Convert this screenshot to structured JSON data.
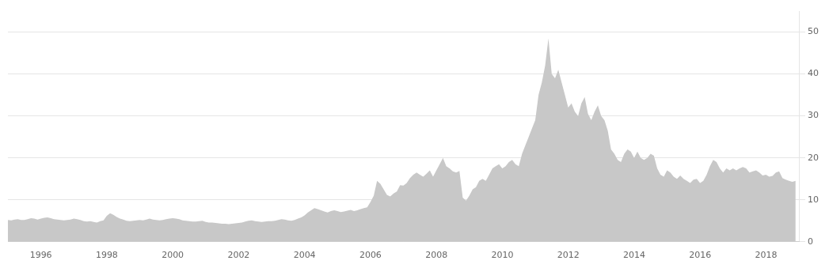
{
  "chart_data": {
    "type": "area",
    "x": [
      1995.0,
      1995.1,
      1995.2,
      1995.3,
      1995.4,
      1995.5,
      1995.6,
      1995.7,
      1995.8,
      1995.9,
      1996.0,
      1996.1,
      1996.2,
      1996.3,
      1996.4,
      1996.5,
      1996.6,
      1996.7,
      1996.8,
      1996.9,
      1997.0,
      1997.1,
      1997.2,
      1997.3,
      1997.4,
      1997.5,
      1997.6,
      1997.7,
      1997.8,
      1997.9,
      1998.0,
      1998.1,
      1998.2,
      1998.3,
      1998.4,
      1998.5,
      1998.6,
      1998.7,
      1998.8,
      1998.9,
      1999.0,
      1999.1,
      1999.2,
      1999.3,
      1999.4,
      1999.5,
      1999.6,
      1999.7,
      1999.8,
      1999.9,
      2000.0,
      2000.1,
      2000.2,
      2000.3,
      2000.4,
      2000.5,
      2000.6,
      2000.7,
      2000.8,
      2000.9,
      2001.0,
      2001.1,
      2001.2,
      2001.3,
      2001.4,
      2001.5,
      2001.6,
      2001.7,
      2001.8,
      2001.9,
      2002.0,
      2002.1,
      2002.2,
      2002.3,
      2002.4,
      2002.5,
      2002.6,
      2002.7,
      2002.8,
      2002.9,
      2003.0,
      2003.1,
      2003.2,
      2003.3,
      2003.4,
      2003.5,
      2003.6,
      2003.7,
      2003.8,
      2003.9,
      2004.0,
      2004.1,
      2004.2,
      2004.3,
      2004.4,
      2004.5,
      2004.6,
      2004.7,
      2004.8,
      2004.9,
      2005.0,
      2005.1,
      2005.2,
      2005.3,
      2005.4,
      2005.5,
      2005.6,
      2005.7,
      2005.8,
      2005.9,
      2006.0,
      2006.1,
      2006.2,
      2006.3,
      2006.4,
      2006.5,
      2006.6,
      2006.7,
      2006.8,
      2006.9,
      2007.0,
      2007.1,
      2007.2,
      2007.3,
      2007.4,
      2007.5,
      2007.6,
      2007.7,
      2007.8,
      2007.9,
      2008.0,
      2008.1,
      2008.2,
      2008.3,
      2008.4,
      2008.5,
      2008.6,
      2008.7,
      2008.8,
      2008.9,
      2009.0,
      2009.1,
      2009.2,
      2009.3,
      2009.4,
      2009.5,
      2009.6,
      2009.7,
      2009.8,
      2009.9,
      2010.0,
      2010.1,
      2010.2,
      2010.3,
      2010.4,
      2010.5,
      2010.6,
      2010.7,
      2010.8,
      2010.9,
      2011.0,
      2011.1,
      2011.2,
      2011.3,
      2011.4,
      2011.5,
      2011.6,
      2011.7,
      2011.8,
      2011.9,
      2012.0,
      2012.1,
      2012.2,
      2012.3,
      2012.4,
      2012.5,
      2012.6,
      2012.7,
      2012.8,
      2012.9,
      2013.0,
      2013.1,
      2013.2,
      2013.3,
      2013.4,
      2013.5,
      2013.6,
      2013.7,
      2013.8,
      2013.9,
      2014.0,
      2014.1,
      2014.2,
      2014.3,
      2014.4,
      2014.5,
      2014.6,
      2014.7,
      2014.8,
      2014.9,
      2015.0,
      2015.1,
      2015.2,
      2015.3,
      2015.4,
      2015.5,
      2015.6,
      2015.7,
      2015.8,
      2015.9,
      2016.0,
      2016.1,
      2016.2,
      2016.3,
      2016.4,
      2016.5,
      2016.6,
      2016.7,
      2016.8,
      2016.9,
      2017.0,
      2017.1,
      2017.2,
      2017.3,
      2017.4,
      2017.5,
      2017.6,
      2017.7,
      2017.8,
      2017.9,
      2018.0,
      2018.1,
      2018.2,
      2018.3,
      2018.4,
      2018.5,
      2018.6,
      2018.7,
      2018.8,
      2018.9
    ],
    "values": [
      5.2,
      5.1,
      5.3,
      5.4,
      5.2,
      5.2,
      5.4,
      5.6,
      5.5,
      5.3,
      5.5,
      5.7,
      5.8,
      5.6,
      5.4,
      5.3,
      5.2,
      5.1,
      5.2,
      5.3,
      5.5,
      5.4,
      5.2,
      4.9,
      4.8,
      4.9,
      4.7,
      4.6,
      4.9,
      5.1,
      6.2,
      6.8,
      6.4,
      5.9,
      5.5,
      5.3,
      5.0,
      4.9,
      5.0,
      5.1,
      5.2,
      5.1,
      5.3,
      5.5,
      5.3,
      5.2,
      5.1,
      5.2,
      5.4,
      5.5,
      5.6,
      5.5,
      5.4,
      5.1,
      5.0,
      4.9,
      4.8,
      4.8,
      4.9,
      5.0,
      4.7,
      4.6,
      4.6,
      4.5,
      4.4,
      4.3,
      4.3,
      4.2,
      4.3,
      4.4,
      4.5,
      4.6,
      4.8,
      5.0,
      5.1,
      4.9,
      4.8,
      4.7,
      4.8,
      4.9,
      4.9,
      5.0,
      5.2,
      5.4,
      5.3,
      5.1,
      5.0,
      5.2,
      5.5,
      5.8,
      6.3,
      7.0,
      7.5,
      8.0,
      7.8,
      7.5,
      7.2,
      7.0,
      7.3,
      7.5,
      7.3,
      7.1,
      7.2,
      7.4,
      7.6,
      7.3,
      7.5,
      7.8,
      8.0,
      8.2,
      9.5,
      11.0,
      14.5,
      13.8,
      12.5,
      11.2,
      10.8,
      11.5,
      12.0,
      13.5,
      13.4,
      14.0,
      15.2,
      16.0,
      16.5,
      16.0,
      15.5,
      16.2,
      17.0,
      15.5,
      17.0,
      18.5,
      20.0,
      18.0,
      17.5,
      16.8,
      16.5,
      16.9,
      10.5,
      9.8,
      11.0,
      12.5,
      13.0,
      14.5,
      15.0,
      14.5,
      16.0,
      17.5,
      18.0,
      18.5,
      17.5,
      18.0,
      19.0,
      19.5,
      18.5,
      18.0,
      21.0,
      23.0,
      25.0,
      27.0,
      29.0,
      35.0,
      38.0,
      42.0,
      48.5,
      40.0,
      39.0,
      41.0,
      38.0,
      35.0,
      32.0,
      33.0,
      31.0,
      30.0,
      33.0,
      34.5,
      30.5,
      29.0,
      31.0,
      32.5,
      30.0,
      29.0,
      26.5,
      22.0,
      21.0,
      19.5,
      19.0,
      21.0,
      22.0,
      21.5,
      20.0,
      21.5,
      20.0,
      19.5,
      20.0,
      21.0,
      20.5,
      17.5,
      16.0,
      15.5,
      17.0,
      16.5,
      15.5,
      15.0,
      15.8,
      15.0,
      14.5,
      14.0,
      14.8,
      15.0,
      14.0,
      14.5,
      16.0,
      18.0,
      19.5,
      19.0,
      17.5,
      16.5,
      17.5,
      17.0,
      17.5,
      17.0,
      17.5,
      17.8,
      17.5,
      16.5,
      16.8,
      17.0,
      16.5,
      15.8,
      16.0,
      15.5,
      15.7,
      16.5,
      16.8,
      15.2,
      14.8,
      14.5,
      14.3,
      14.5
    ],
    "color": "#c8c8c8",
    "xlim": [
      1995.0,
      2019.0
    ],
    "xticks": [
      1996,
      1998,
      2000,
      2002,
      2004,
      2006,
      2008,
      2010,
      2012,
      2014,
      2016,
      2018
    ],
    "ylim": [
      0,
      55
    ],
    "yticks": [
      0,
      10,
      20,
      30,
      40,
      50
    ],
    "grid": "y"
  }
}
